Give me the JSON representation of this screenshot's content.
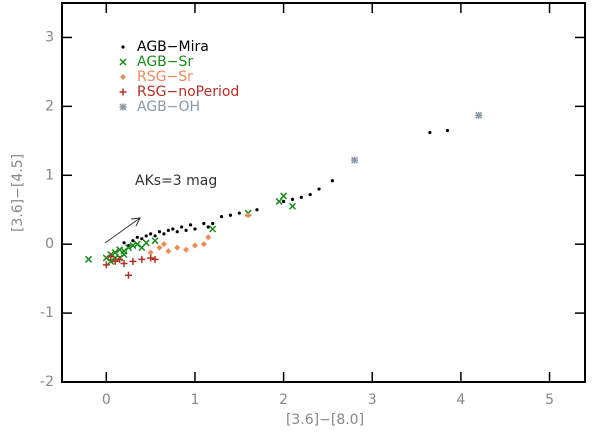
{
  "chart_data": {
    "type": "scatter",
    "x_label": "[3.6]−[8.0]",
    "y_label": "[3.6]−[4.5]",
    "annotation": "AKs=3 mag",
    "xlim": [
      -0.5,
      5.4
    ],
    "xticks": [
      0,
      1,
      2,
      3,
      4,
      5
    ],
    "ylim": [
      -2,
      3.5
    ],
    "yticks": [
      -2,
      -1,
      0,
      1,
      2,
      3
    ],
    "legend": "upper left",
    "series": [
      {
        "name": "AGB−Mira",
        "color": "#000000",
        "marker": "dot",
        "x": [
          0.2,
          0.25,
          0.3,
          0.35,
          0.4,
          0.45,
          0.5,
          0.55,
          0.6,
          0.65,
          0.7,
          0.75,
          0.8,
          0.85,
          0.9,
          0.95,
          1.0,
          1.1,
          1.15,
          1.2,
          1.3,
          1.4,
          1.5,
          1.7,
          2.0,
          2.1,
          2.2,
          2.3,
          2.4,
          2.55,
          3.65,
          3.85
        ],
        "values": [
          0.02,
          -0.02,
          0.05,
          0.1,
          0.08,
          0.12,
          0.15,
          0.12,
          0.18,
          0.15,
          0.2,
          0.22,
          0.18,
          0.25,
          0.2,
          0.28,
          0.22,
          0.3,
          0.25,
          0.3,
          0.4,
          0.42,
          0.45,
          0.5,
          0.62,
          0.65,
          0.68,
          0.72,
          0.8,
          0.92,
          1.62,
          1.65
        ]
      },
      {
        "name": "AGB−Sr",
        "color": "#1a8a1a",
        "marker": "x",
        "x": [
          -0.2,
          0.0,
          0.05,
          0.05,
          0.1,
          0.1,
          0.15,
          0.15,
          0.2,
          0.2,
          0.25,
          0.3,
          0.35,
          0.4,
          0.45,
          0.55,
          1.2,
          1.6,
          1.95,
          2.0,
          2.1
        ],
        "values": [
          -0.22,
          -0.2,
          -0.15,
          -0.25,
          -0.12,
          -0.2,
          -0.08,
          -0.2,
          -0.1,
          -0.15,
          -0.05,
          -0.02,
          0.0,
          -0.05,
          0.02,
          0.05,
          0.22,
          0.45,
          0.62,
          0.7,
          0.55
        ]
      },
      {
        "name": "RSG−Sr",
        "color": "#f08a5a",
        "marker": "diamond",
        "x": [
          0.5,
          0.6,
          0.65,
          0.7,
          0.8,
          0.9,
          1.0,
          1.1,
          1.15,
          1.6
        ],
        "values": [
          -0.12,
          -0.05,
          0.0,
          -0.1,
          -0.05,
          -0.08,
          -0.02,
          0.0,
          0.1,
          0.42
        ]
      },
      {
        "name": "RSG−noPeriod",
        "color": "#b03028",
        "marker": "plus",
        "x": [
          0.0,
          0.05,
          0.1,
          0.15,
          0.2,
          0.25,
          0.3,
          0.4,
          0.5,
          0.55
        ],
        "values": [
          -0.3,
          -0.18,
          -0.25,
          -0.22,
          -0.28,
          -0.45,
          -0.25,
          -0.22,
          -0.2,
          -0.22
        ]
      },
      {
        "name": "AGB−OH",
        "color": "#8a9aaa",
        "marker": "asterisk",
        "x": [
          2.8,
          4.2
        ],
        "values": [
          1.22,
          1.87
        ]
      }
    ]
  }
}
